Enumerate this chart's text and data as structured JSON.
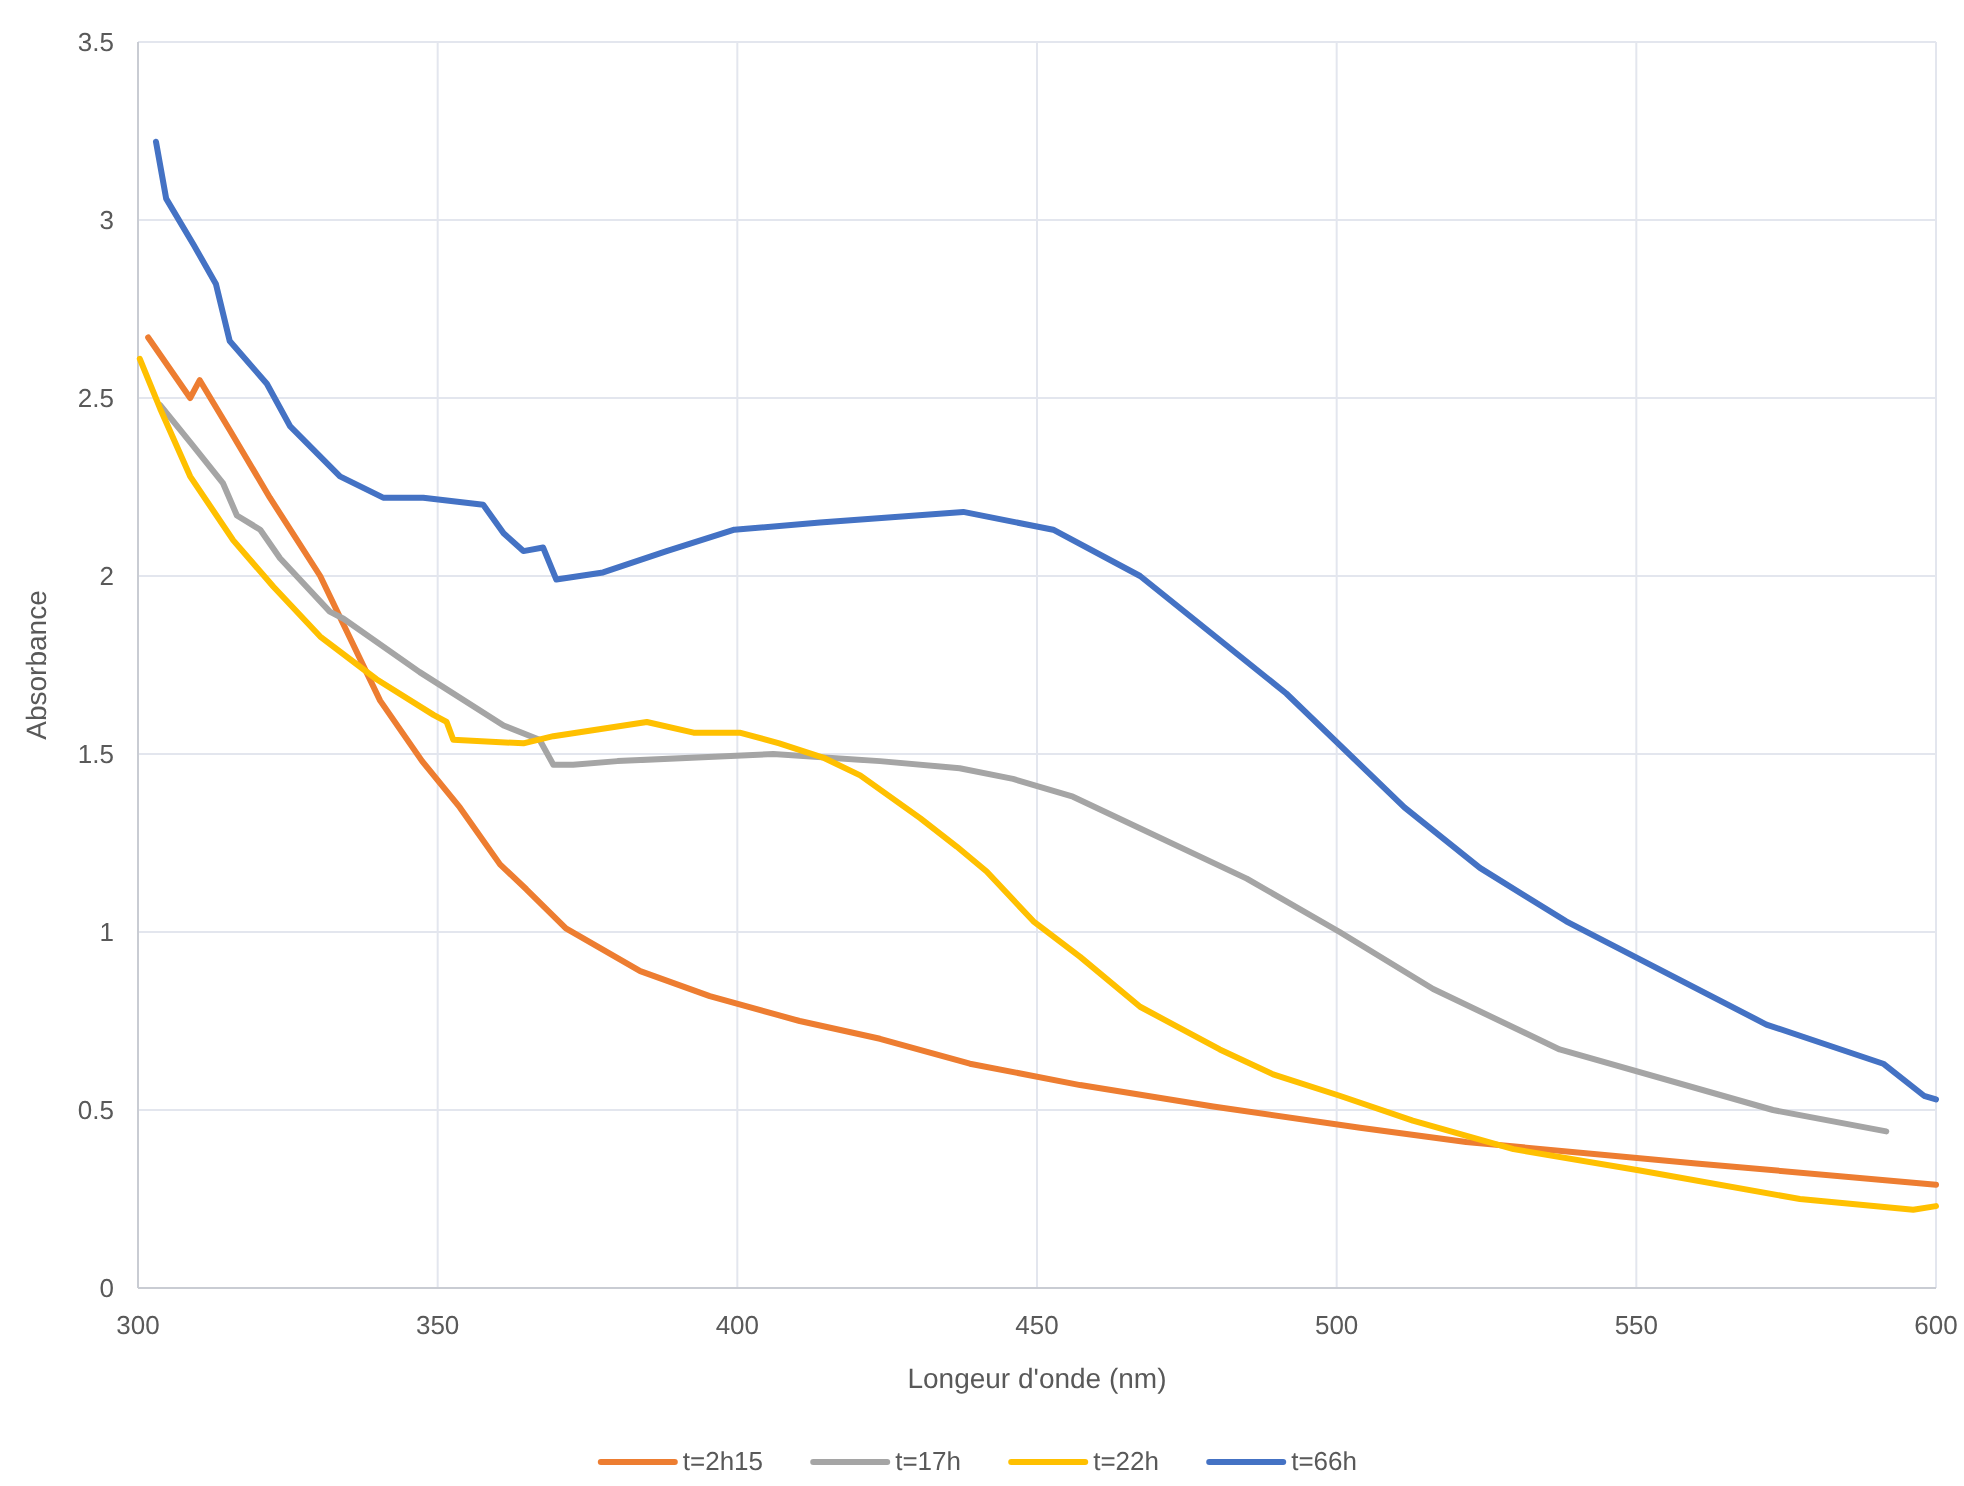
{
  "chart_data": {
    "type": "line",
    "xlabel": "Longeur d'onde (nm)",
    "ylabel": "Absorbance",
    "xlim": [
      300,
      600
    ],
    "xticks": [
      300,
      350,
      400,
      450,
      500,
      550,
      600
    ],
    "ylim": [
      0,
      3.5
    ],
    "yticks": [
      0,
      0.5,
      1,
      1.5,
      2,
      2.5,
      3,
      3.5
    ],
    "grid": true,
    "legend": "bottom",
    "marker": "none",
    "line_style": "solid",
    "series": [
      {
        "name": "t=2h15",
        "color": "#ed7d31",
        "x": [
          301.7,
          308.7,
          310.3,
          315.3,
          322,
          330.4,
          340.4,
          347.4,
          353.7,
          360.4,
          364.8,
          371.4,
          383.8,
          395.4,
          410.4,
          423.8,
          438.8,
          457.2,
          479.4,
          503.9,
          521.6,
          560,
          600
        ],
        "values": [
          2.67,
          2.5,
          2.55,
          2.41,
          2.22,
          2.0,
          1.65,
          1.48,
          1.35,
          1.19,
          1.12,
          1.01,
          0.89,
          0.82,
          0.75,
          0.7,
          0.63,
          0.57,
          0.51,
          0.45,
          0.41,
          0.35,
          0.29
        ]
      },
      {
        "name": "t=17h",
        "color": "#a5a5a5",
        "x": [
          303.7,
          309,
          314.2,
          316.5,
          320.4,
          323.7,
          332,
          334.3,
          347,
          361,
          367,
          369.3,
          372.6,
          380,
          406,
          423.8,
          437.1,
          446,
          456,
          485,
          500.5,
          516.1,
          537.2,
          572.8,
          591.7
        ],
        "values": [
          2.48,
          2.37,
          2.26,
          2.17,
          2.13,
          2.05,
          1.9,
          1.88,
          1.73,
          1.58,
          1.54,
          1.47,
          1.47,
          1.48,
          1.5,
          1.48,
          1.46,
          1.43,
          1.38,
          1.15,
          1.0,
          0.84,
          0.67,
          0.5,
          0.44
        ]
      },
      {
        "name": "t=22h",
        "color": "#ffc000",
        "x": [
          300.3,
          303.7,
          308.7,
          315.9,
          322.6,
          330.4,
          339.8,
          349.3,
          351.5,
          352.6,
          364.3,
          369.3,
          384.9,
          392.7,
          400.4,
          407,
          414.3,
          420.5,
          430.5,
          436.6,
          441.6,
          449.4,
          457.2,
          467.2,
          480.5,
          489.4,
          500.5,
          512.7,
          529.5,
          550.6,
          577.3,
          596.2,
          600
        ],
        "values": [
          2.61,
          2.47,
          2.28,
          2.1,
          1.97,
          1.83,
          1.71,
          1.61,
          1.59,
          1.54,
          1.53,
          1.55,
          1.59,
          1.56,
          1.56,
          1.53,
          1.49,
          1.44,
          1.32,
          1.24,
          1.17,
          1.03,
          0.93,
          0.79,
          0.67,
          0.6,
          0.54,
          0.47,
          0.39,
          0.33,
          0.25,
          0.22,
          0.23
        ]
      },
      {
        "name": "t=66h",
        "color": "#4472c4",
        "x": [
          303,
          304.7,
          309.3,
          313,
          315.3,
          321.5,
          325.4,
          333.7,
          340.9,
          347.6,
          357.6,
          361,
          364.3,
          367.6,
          369.8,
          377.6,
          388.2,
          399.5,
          413.8,
          437.7,
          452.7,
          467.2,
          491.6,
          511.3,
          523.9,
          538.3,
          571.7,
          591.2,
          598,
          600
        ],
        "values": [
          3.22,
          3.06,
          2.93,
          2.82,
          2.66,
          2.54,
          2.42,
          2.28,
          2.22,
          2.22,
          2.2,
          2.12,
          2.07,
          2.08,
          1.99,
          2.01,
          2.07,
          2.13,
          2.15,
          2.18,
          2.13,
          2.0,
          1.67,
          1.35,
          1.18,
          1.03,
          0.74,
          0.63,
          0.54,
          0.53
        ]
      }
    ]
  }
}
